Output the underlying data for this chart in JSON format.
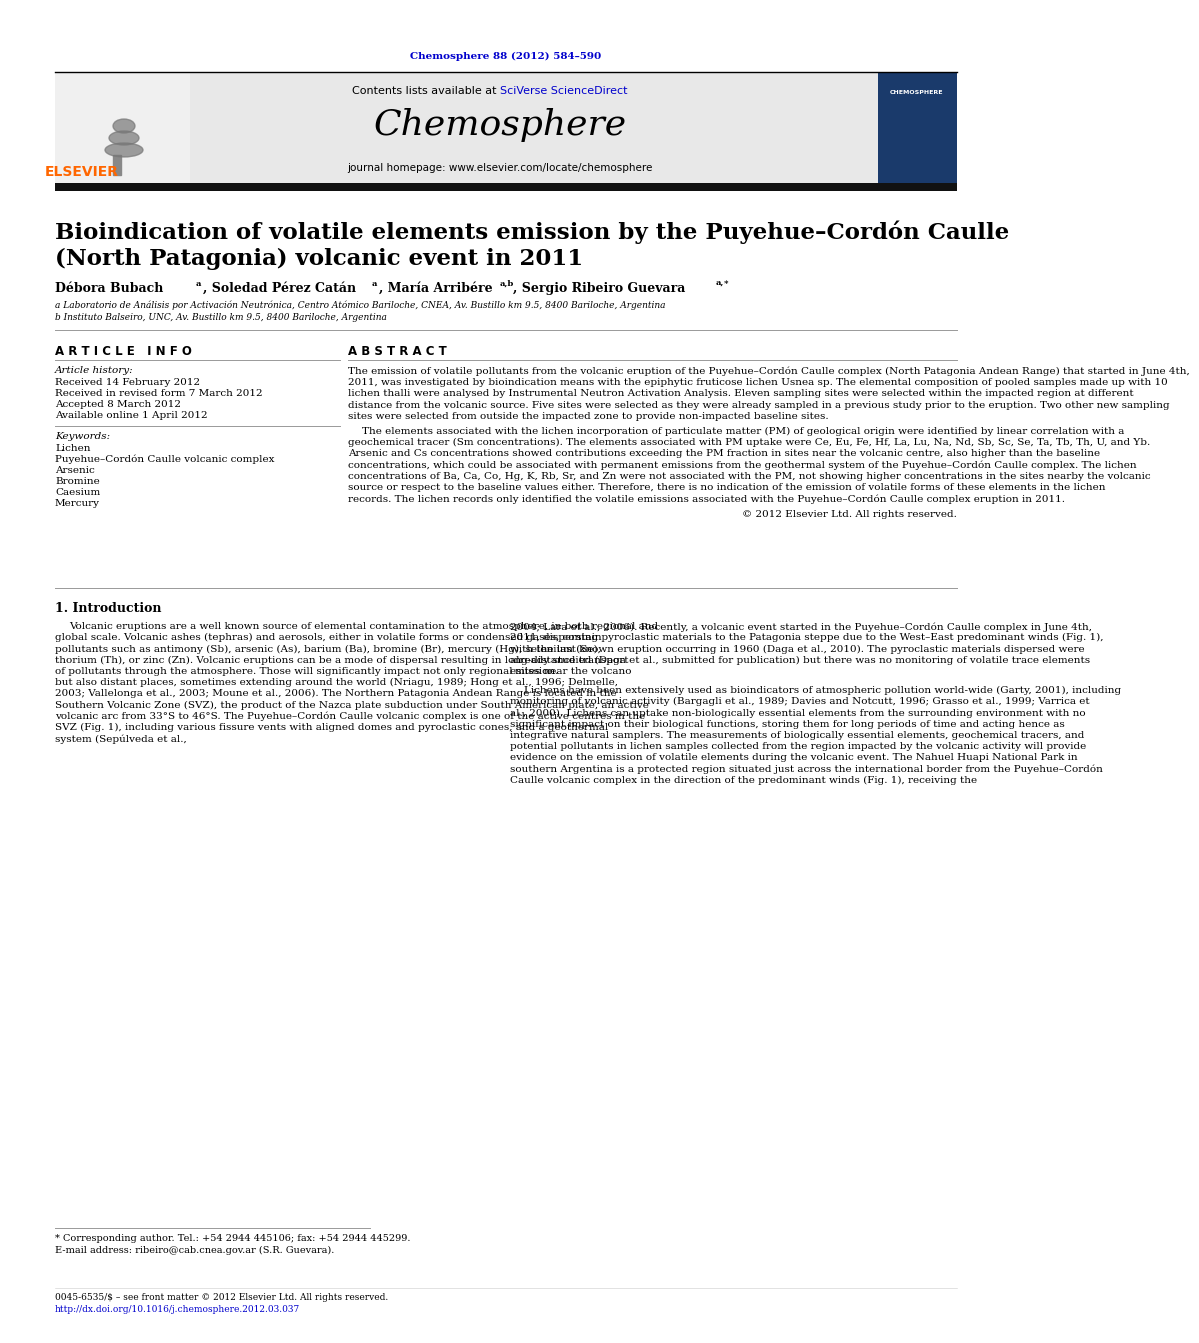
{
  "journal_ref": "Chemosphere 88 (2012) 584–590",
  "journal_name": "Chemosphere",
  "journal_url": "journal homepage: www.elsevier.com/locate/chemosphere",
  "title_line1": "Bioindication of volatile elements emission by the Puyehue–Cordón Caulle",
  "title_line2": "(North Patagonia) volcanic event in 2011",
  "affil_a": "a Laboratorio de Análisis por Activación Neutrónica, Centro Atómico Bariloche, CNEA, Av. Bustillo km 9.5, 8400 Bariloche, Argentina",
  "affil_b": "b Instituto Balseiro, UNC, Av. Bustillo km 9.5, 8400 Bariloche, Argentina",
  "article_info_header": "A R T I C L E   I N F O",
  "article_history_label": "Article history:",
  "received": "Received 14 February 2012",
  "received_revised": "Received in revised form 7 March 2012",
  "accepted": "Accepted 8 March 2012",
  "available": "Available online 1 April 2012",
  "keywords_label": "Keywords:",
  "kw1": "Lichen",
  "kw2": "Puyehue–Cordón Caulle volcanic complex",
  "kw3": "Arsenic",
  "kw4": "Bromine",
  "kw5": "Caesium",
  "kw6": "Mercury",
  "abstract_header": "A B S T R A C T",
  "abstract_p1": "The emission of volatile pollutants from the volcanic eruption of the Puyehue–Cordón Caulle complex (North Patagonia Andean Range) that started in June 4th, 2011, was investigated by bioindication means with the epiphytic fruticose lichen Usnea sp. The elemental composition of pooled samples made up with 10 lichen thalli were analysed by Instrumental Neutron Activation Analysis. Eleven sampling sites were selected within the impacted region at different distance from the volcanic source. Five sites were selected as they were already sampled in a previous study prior to the eruption. Two other new sampling sites were selected from outside the impacted zone to provide non-impacted baseline sites.",
  "abstract_p2": "The elements associated with the lichen incorporation of particulate matter (PM) of geological origin were identified by linear correlation with a geochemical tracer (Sm concentrations). The elements associated with PM uptake were Ce, Eu, Fe, Hf, La, Lu, Na, Nd, Sb, Sc, Se, Ta, Tb, Th, U, and Yb. Arsenic and Cs concentrations showed contributions exceeding the PM fraction in sites near the volcanic centre, also higher than the baseline concentrations, which could be associated with permanent emissions from the geothermal system of the Puyehue–Cordón Caulle complex. The lichen concentrations of Ba, Ca, Co, Hg, K, Rb, Sr, and Zn were not associated with the PM, not showing higher concentrations in the sites nearby the volcanic source or respect to the baseline values either. Therefore, there is no indication of the emission of volatile forms of these elements in the lichen records. The lichen records only identified the volatile emissions associated with the Puyehue–Cordón Caulle complex eruption in 2011.",
  "copyright": "© 2012 Elsevier Ltd. All rights reserved.",
  "intro_header": "1. Introduction",
  "intro_col1_p1": "Volcanic eruptions are a well known source of elemental contamination to the atmosphere, in both regional and global scale. Volcanic ashes (tephras) and aerosols, either in volatile forms or condensed gases, contain pollutants such as antimony (Sb), arsenic (As), barium (Ba), bromine (Br), mercury (Hg), selenium (Se), thorium (Th), or zinc (Zn). Volcanic eruptions can be a mode of dispersal resulting in long-distance transport of pollutants through the atmosphere. Those will significantly impact not only regional sites near the volcano but also distant places, sometimes extending around the world (Nriagu, 1989; Hong et al., 1996; Delmelle, 2003; Vallelonga et al., 2003; Moune et al., 2006). The Northern Patagonia Andean Range is located in the Southern Volcanic Zone (SVZ), the product of the Nazca plate subduction under South American plate, an active volcanic arc from 33°S to 46°S. The Puyehue–Cordón Caulle volcanic complex is one of the active centres in the SVZ (Fig. 1), including various fissure vents with aligned domes and pyroclastic cones, and a geothermal system (Sepúlveda et al.,",
  "intro_col2_p1": "2004; Lara et al., 2006). Recently, a volcanic event started in the Puyehue–Cordón Caulle complex in June 4th, 2011, dispersing pyroclastic materials to the Patagonia steppe due to the West–East predominant winds (Fig. 1), with the last known eruption occurring in 1960 (Daga et al., 2010). The pyroclastic materials dispersed were already studied (Daga et al., submitted for publication) but there was no monitoring of volatile trace elements emission.",
  "intro_col2_p2": "Lichens have been extensively used as bioindicators of atmospheric pollution world-wide (Garty, 2001), including monitoring of volcanic activity (Bargagli et al., 1989; Davies and Notcutt, 1996; Grasso et al., 1999; Varrica et al., 2000). Lichens can uptake non-biologically essential elements from the surrounding environment with no significant impact on their biological functions, storing them for long periods of time and acting hence as integrative natural samplers. The measurements of biologically essential elements, geochemical tracers, and potential pollutants in lichen samples collected from the region impacted by the volcanic activity will provide evidence on the emission of volatile elements during the volcanic event. The Nahuel Huapi National Park in southern Argentina is a protected region situated just across the international border from the Puyehue–Cordón Caulle volcanic complex in the direction of the predominant winds (Fig. 1), receiving the",
  "footnote_star": "* Corresponding author. Tel.: +54 2944 445106; fax: +54 2944 445299.",
  "footnote_email": "E-mail address: ribeiro@cab.cnea.gov.ar (S.R. Guevara).",
  "footer_issn": "0045-6535/$ – see front matter © 2012 Elsevier Ltd. All rights reserved.",
  "footer_doi": "http://dx.doi.org/10.1016/j.chemosphere.2012.03.037",
  "bg_color": "#ffffff",
  "blue_link": "#0000cc",
  "elsevier_orange": "#ff6600"
}
